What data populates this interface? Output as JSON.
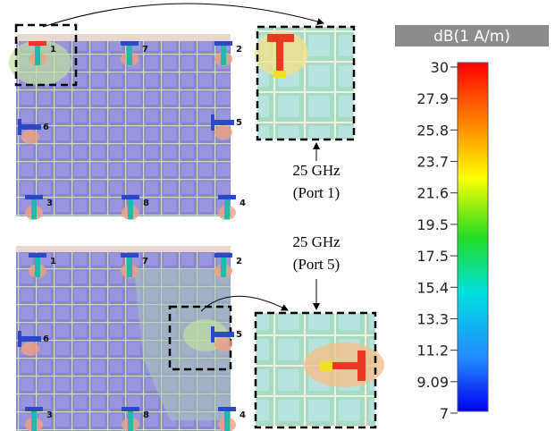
{
  "panels": [
    {
      "ports": [
        "1",
        "7",
        "2",
        "6",
        "5",
        "3",
        "8",
        "4"
      ],
      "caption": {
        "frequency": "25 GHz",
        "port": "(Port 1)"
      }
    },
    {
      "ports": [
        "1",
        "7",
        "2",
        "6",
        "5",
        "3",
        "8",
        "4"
      ],
      "caption": {
        "frequency": "25 GHz",
        "port": "(Port 5)"
      }
    }
  ],
  "colorbar": {
    "title": "dB(1 A/m)",
    "ticks": [
      "30",
      "27.9",
      "25.8",
      "23.7",
      "21.6",
      "19.5",
      "17.5",
      "15.4",
      "13.3",
      "11.2",
      "9.09",
      "7"
    ]
  }
}
